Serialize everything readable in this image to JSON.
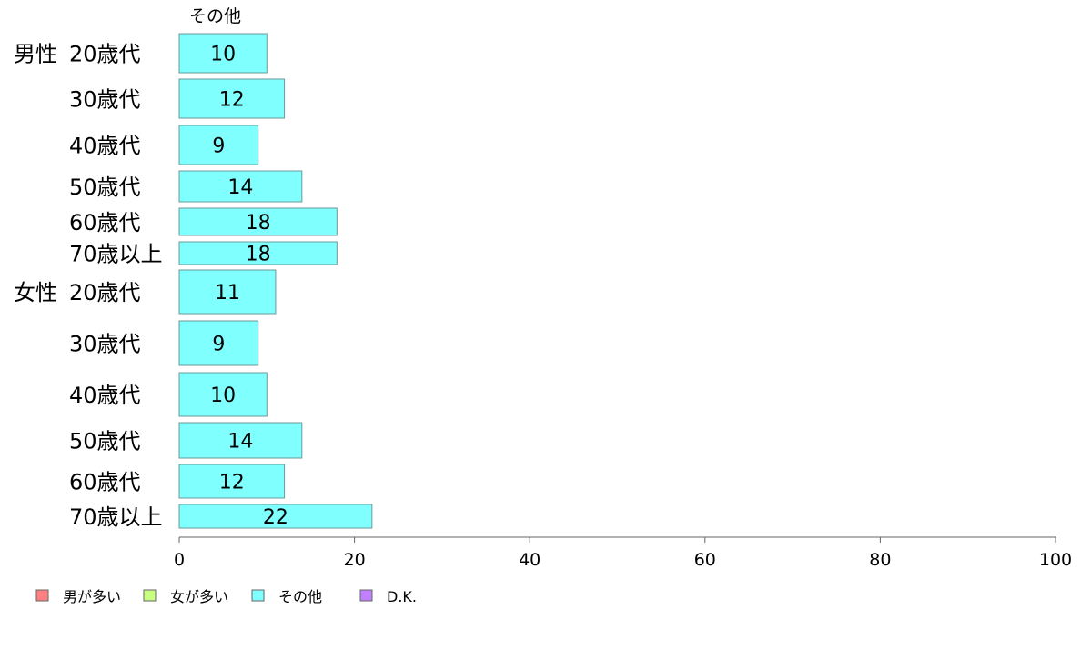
{
  "chart_data": {
    "type": "bar",
    "orientation": "horizontal",
    "series_header": "その他",
    "groups": [
      {
        "label": "男性",
        "rows": [
          {
            "label": "20歳代",
            "value": 10
          },
          {
            "label": "30歳代",
            "value": 12
          },
          {
            "label": "40歳代",
            "value": 9
          },
          {
            "label": "50歳代",
            "value": 14
          },
          {
            "label": "60歳代",
            "value": 18
          },
          {
            "label": "70歳以上",
            "value": 18
          }
        ]
      },
      {
        "label": "女性",
        "rows": [
          {
            "label": "20歳代",
            "value": 11
          },
          {
            "label": "30歳代",
            "value": 9
          },
          {
            "label": "40歳代",
            "value": 10
          },
          {
            "label": "50歳代",
            "value": 14
          },
          {
            "label": "60歳代",
            "value": 12
          },
          {
            "label": "70歳以上",
            "value": 22
          }
        ]
      }
    ],
    "xlim": [
      0,
      100
    ],
    "xticks": [
      "0",
      "20",
      "40",
      "60",
      "80",
      "100"
    ],
    "legend": [
      {
        "label": "男が多い",
        "color": "#ff8080"
      },
      {
        "label": "女が多い",
        "color": "#c8ff80"
      },
      {
        "label": "その他",
        "color": "#80ffff"
      },
      {
        "label": "D.K.",
        "color": "#c080ff"
      }
    ],
    "bar_color": "#80ffff",
    "legend_position": "bottom-left",
    "grid": false
  }
}
